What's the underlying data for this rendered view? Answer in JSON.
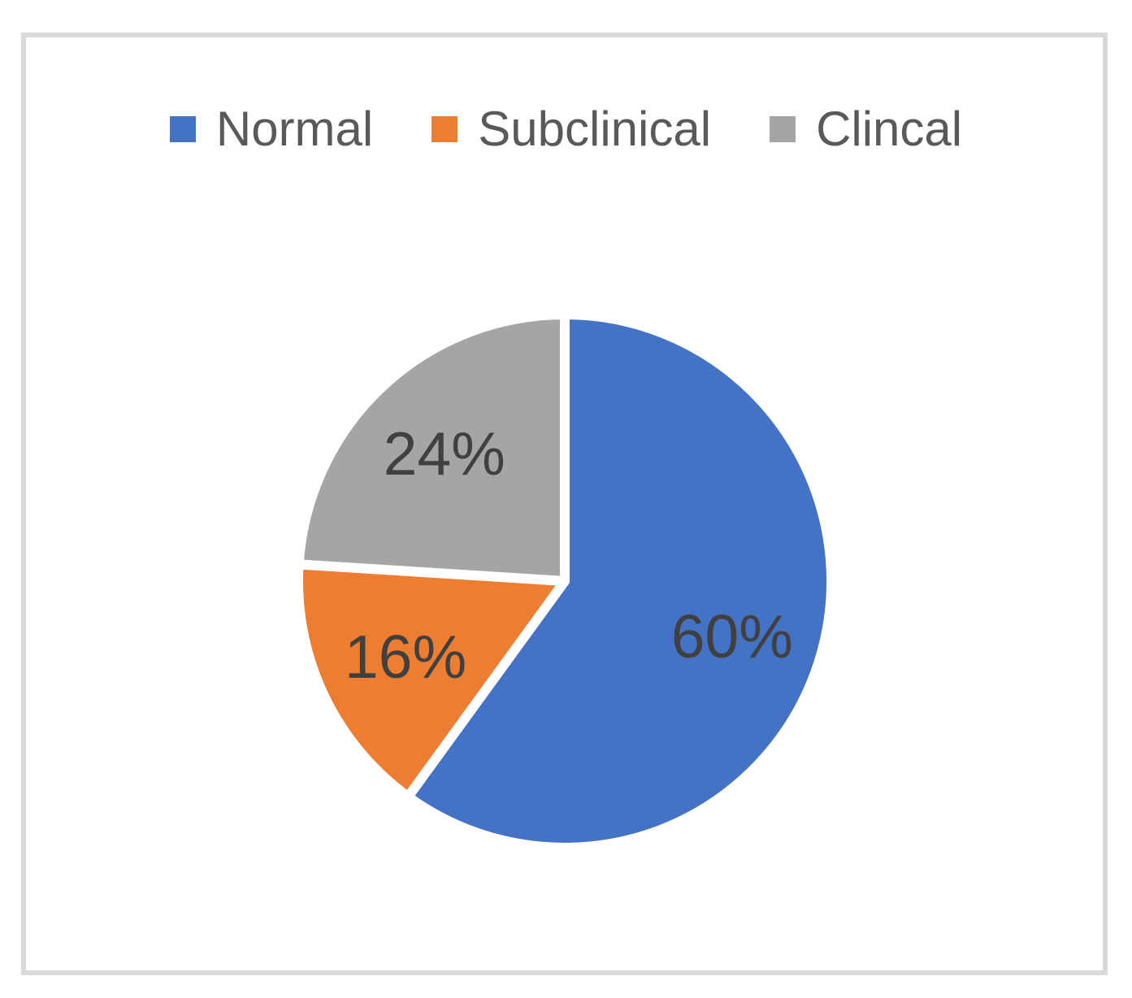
{
  "frame": {
    "border_color": "#D9D9D9",
    "background": "#FFFFFF"
  },
  "chart_data": {
    "type": "pie",
    "labels": [
      "Normal",
      "Subclinical",
      "Clincal"
    ],
    "values": [
      60,
      16,
      24
    ],
    "data_labels": [
      "60%",
      "16%",
      "24%"
    ],
    "colors": [
      "#4472C4",
      "#ED7D31",
      "#A5A5A5"
    ],
    "slice_border_color": "#FFFFFF",
    "label_color": "#404040",
    "legend_text_color": "#595959",
    "legend_position": "top",
    "start_angle_deg": 0,
    "direction": "clockwise",
    "title": "",
    "grid": false
  }
}
